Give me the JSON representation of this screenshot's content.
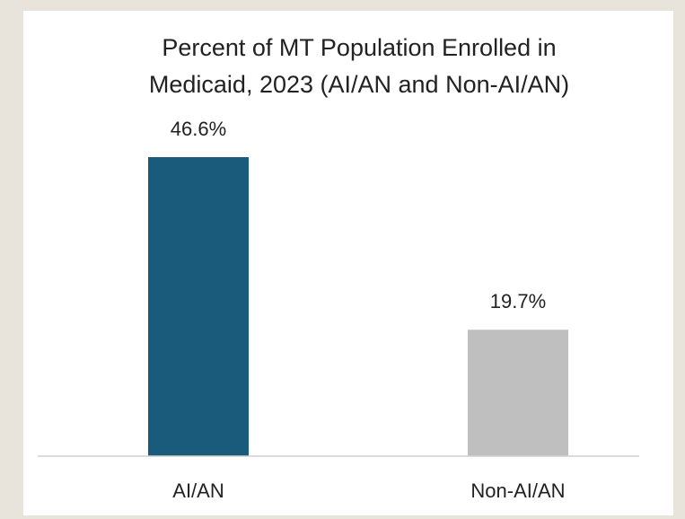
{
  "chart_data": {
    "type": "bar",
    "title": "Percent of MT Population Enrolled in Medicaid, 2023 (AI/AN and Non-AI/AN)",
    "categories": [
      "AI/AN",
      "Non-AI/AN"
    ],
    "values": [
      46.6,
      19.7
    ],
    "value_labels": [
      "46.6%",
      "19.7%"
    ],
    "colors": [
      "#1a5b7c",
      "#bfbfbf"
    ]
  }
}
